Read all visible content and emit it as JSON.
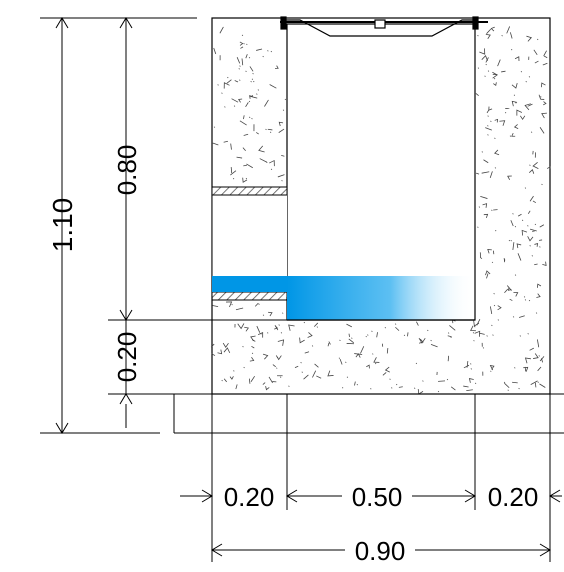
{
  "drawing": {
    "type": "section",
    "subject": "inspection chamber / gully cross-section with concrete walls, grate at top and inlet pipe",
    "dimensions": {
      "total_height": "1.10",
      "inner_depth": "0.80",
      "base_thickness": "0.20",
      "left_wall": "0.20",
      "inner_width": "0.50",
      "right_wall": "0.20",
      "total_width": "0.90"
    },
    "colors": {
      "line": "#000000",
      "concrete_fill": "#ffffff",
      "water_fill": "#0096e6",
      "pipe_hatch": "#555555"
    }
  }
}
